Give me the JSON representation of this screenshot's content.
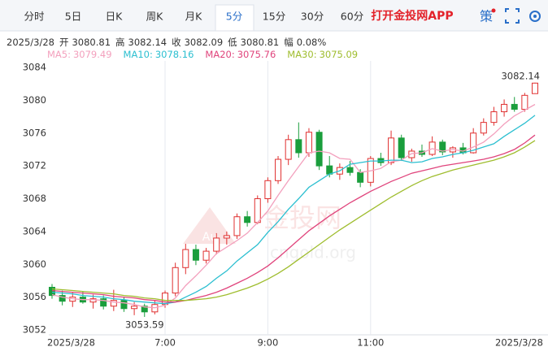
{
  "tabs": [
    "分时",
    "5日",
    "日K",
    "周K",
    "月K",
    "5分",
    "15分",
    "30分",
    "60分"
  ],
  "selected_tab": 5,
  "brand": "打开金投网APP",
  "strategy": "策",
  "watermark": {
    "name": "金投网",
    "site": "cngold.org",
    "logo": "Au"
  },
  "info": {
    "date": "2025/3/28",
    "open": "开",
    "high": "高",
    "close": "收",
    "low": "低",
    "change": "幅",
    "change_value": "0.08%"
  },
  "chart_data": {
    "type": "candlestick",
    "up_color": "#e03030",
    "down_color": "#1a9e3c",
    "ylim": [
      3052,
      3084
    ],
    "yticks": [
      3052,
      3056,
      3060,
      3064,
      3068,
      3072,
      3076,
      3080,
      3084
    ],
    "categories": [
      "2025/3/28",
      null,
      null,
      null,
      null,
      null,
      null,
      null,
      null,
      null,
      null,
      "7:00",
      null,
      null,
      null,
      null,
      null,
      null,
      null,
      null,
      null,
      "9:00",
      null,
      null,
      null,
      null,
      null,
      null,
      null,
      null,
      null,
      "11:00",
      null,
      null,
      null,
      null,
      null,
      null,
      null,
      null,
      null,
      null,
      null,
      null,
      null,
      null,
      null,
      "2025/3/28"
    ],
    "ohlc": {
      "open": [
        3057.2,
        3056.2,
        3055.5,
        3056.0,
        3055.4,
        3055.8,
        3054.9,
        3055.6,
        3054.6,
        3054.9,
        3054.2,
        3055.1,
        3056.5,
        3059.6,
        3061.8,
        3060.5,
        3061.6,
        3063.2,
        3063.5,
        3065.8,
        3065.1,
        3068.0,
        3070.2,
        3072.8,
        3075.2,
        3073.6,
        3076.1,
        3072.0,
        3071.0,
        3071.8,
        3071.2,
        3070.0,
        3072.9,
        3072.4,
        3075.4,
        3073.0,
        3073.8,
        3073.4,
        3074.9,
        3073.7,
        3074.2,
        3073.6,
        3076.0,
        3077.3,
        3078.6,
        3079.5,
        3078.9,
        3080.81
      ],
      "high": [
        3057.6,
        3056.8,
        3056.6,
        3056.7,
        3056.3,
        3056.2,
        3056.9,
        3056.0,
        3055.4,
        3055.2,
        3055.6,
        3056.8,
        3060.2,
        3062.5,
        3062.4,
        3062.0,
        3063.8,
        3064.0,
        3066.2,
        3066.5,
        3068.4,
        3070.6,
        3073.2,
        3075.8,
        3077.3,
        3076.6,
        3076.4,
        3073.2,
        3072.3,
        3072.6,
        3071.6,
        3073.2,
        3073.6,
        3076.3,
        3075.8,
        3074.1,
        3074.6,
        3075.6,
        3075.2,
        3074.4,
        3074.8,
        3076.6,
        3077.8,
        3079.2,
        3080.1,
        3080.4,
        3080.9,
        3082.14
      ],
      "low": [
        3055.8,
        3055.0,
        3054.8,
        3055.2,
        3054.6,
        3054.5,
        3054.3,
        3054.2,
        3053.8,
        3053.59,
        3053.9,
        3054.7,
        3056.1,
        3058.8,
        3059.9,
        3060.1,
        3061.2,
        3062.4,
        3063.1,
        3064.6,
        3064.9,
        3067.5,
        3069.8,
        3072.1,
        3073.0,
        3073.1,
        3071.5,
        3070.6,
        3070.3,
        3070.8,
        3069.4,
        3069.5,
        3072.0,
        3072.1,
        3072.6,
        3072.5,
        3073.1,
        3073.2,
        3073.3,
        3073.0,
        3073.4,
        3073.5,
        3075.7,
        3076.9,
        3078.0,
        3078.6,
        3078.6,
        3080.81
      ],
      "close": [
        3056.2,
        3055.5,
        3056.0,
        3055.4,
        3055.8,
        3054.9,
        3055.6,
        3054.6,
        3054.9,
        3054.2,
        3055.1,
        3056.5,
        3059.6,
        3061.8,
        3060.5,
        3061.6,
        3063.2,
        3063.5,
        3065.8,
        3065.1,
        3068.0,
        3070.2,
        3072.8,
        3075.2,
        3073.6,
        3076.1,
        3072.0,
        3071.0,
        3071.8,
        3071.2,
        3070.0,
        3072.9,
        3072.4,
        3075.4,
        3073.0,
        3073.8,
        3073.4,
        3074.9,
        3073.7,
        3074.2,
        3073.6,
        3076.0,
        3077.3,
        3078.6,
        3079.5,
        3078.9,
        3080.6,
        3082.09
      ]
    },
    "series": [
      {
        "name": "MA5:",
        "color": "#f3a0bd",
        "values": [
          3056.3,
          3056.0,
          3055.8,
          3055.7,
          3055.7,
          3055.6,
          3055.4,
          3055.3,
          3055.1,
          3054.8,
          3054.7,
          3055.0,
          3055.9,
          3057.4,
          3058.6,
          3059.9,
          3061.3,
          3062.1,
          3062.9,
          3063.8,
          3065.1,
          3066.5,
          3068.4,
          3070.2,
          3071.9,
          3073.6,
          3073.8,
          3073.6,
          3072.9,
          3072.8,
          3071.2,
          3071.4,
          3071.7,
          3072.5,
          3072.7,
          3073.5,
          3073.6,
          3074.1,
          3073.8,
          3074.0,
          3073.8,
          3074.3,
          3074.9,
          3075.9,
          3077.1,
          3078.1,
          3078.8,
          3079.49
        ]
      },
      {
        "name": "MA10:",
        "color": "#2bbfd0",
        "values": [
          3056.6,
          3056.5,
          3056.4,
          3056.2,
          3056.1,
          3056.0,
          3055.8,
          3055.7,
          3055.5,
          3055.4,
          3055.3,
          3055.2,
          3055.4,
          3056.0,
          3056.6,
          3057.3,
          3058.3,
          3059.2,
          3060.4,
          3061.4,
          3062.4,
          3063.9,
          3065.2,
          3066.7,
          3068.0,
          3069.4,
          3070.2,
          3071.0,
          3071.4,
          3072.2,
          3072.4,
          3072.6,
          3072.6,
          3072.7,
          3072.7,
          3072.4,
          3072.5,
          3072.9,
          3073.1,
          3073.4,
          3073.6,
          3073.9,
          3074.3,
          3074.7,
          3075.6,
          3076.4,
          3077.2,
          3078.16
        ]
      },
      {
        "name": "MA20:",
        "color": "#e0447c",
        "values": [
          3056.8,
          3056.7,
          3056.6,
          3056.5,
          3056.4,
          3056.3,
          3056.1,
          3056.0,
          3055.9,
          3055.7,
          3055.6,
          3055.4,
          3055.4,
          3055.6,
          3055.9,
          3056.2,
          3056.6,
          3057.1,
          3057.7,
          3058.3,
          3059.0,
          3059.8,
          3060.8,
          3061.9,
          3063.0,
          3064.1,
          3065.0,
          3065.9,
          3066.7,
          3067.5,
          3068.2,
          3068.9,
          3069.5,
          3070.1,
          3070.6,
          3071.1,
          3071.4,
          3071.7,
          3072.0,
          3072.2,
          3072.4,
          3072.6,
          3072.8,
          3073.1,
          3073.5,
          3074.0,
          3074.8,
          3075.76
        ]
      },
      {
        "name": "MA30:",
        "color": "#9fbd2e",
        "values": [
          3057.0,
          3056.9,
          3056.8,
          3056.7,
          3056.6,
          3056.5,
          3056.4,
          3056.2,
          3056.1,
          3055.9,
          3055.8,
          3055.6,
          3055.6,
          3055.6,
          3055.7,
          3055.8,
          3056.0,
          3056.3,
          3056.7,
          3057.1,
          3057.6,
          3058.2,
          3058.9,
          3059.7,
          3060.6,
          3061.5,
          3062.4,
          3063.3,
          3064.2,
          3065.0,
          3065.8,
          3066.6,
          3067.4,
          3068.2,
          3068.9,
          3069.6,
          3070.2,
          3070.7,
          3071.1,
          3071.5,
          3071.8,
          3072.1,
          3072.4,
          3072.7,
          3073.1,
          3073.6,
          3074.3,
          3075.09
        ]
      }
    ]
  }
}
